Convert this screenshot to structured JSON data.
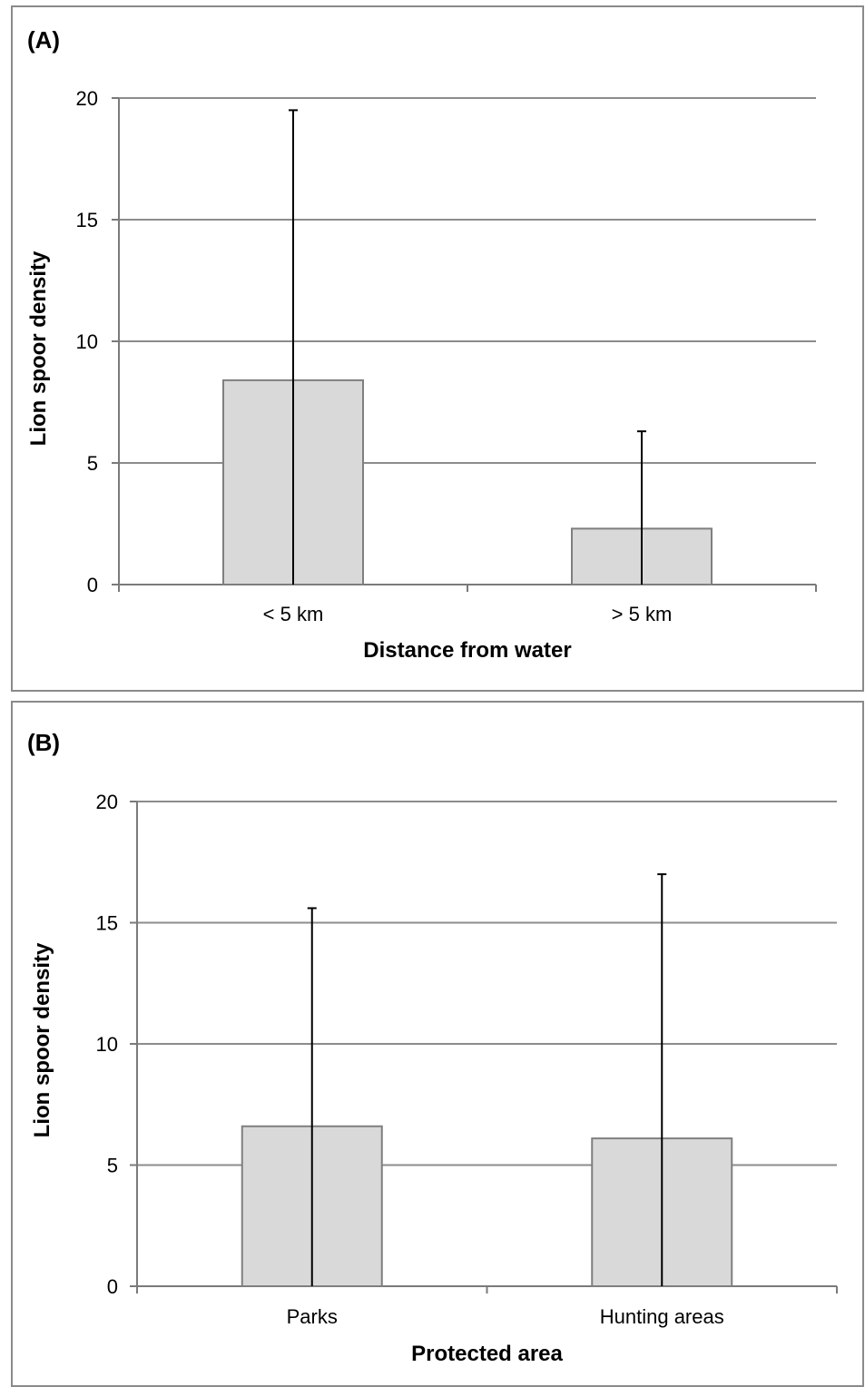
{
  "chart_data": [
    {
      "type": "bar",
      "panel_label": "(A)",
      "categories": [
        "< 5 km",
        "> 5 km"
      ],
      "values": [
        8.4,
        2.3
      ],
      "error_upper": [
        19.5,
        6.3
      ],
      "xlabel": "Distance from water",
      "ylabel": "Lion spoor density",
      "ylim": [
        0,
        20
      ],
      "yticks": [
        "0",
        "5",
        "10",
        "15",
        "20"
      ],
      "grid": true,
      "colors": {
        "bar_fill": "#d9d9d9",
        "bar_stroke": "#7f7f7f",
        "error": "#000000"
      }
    },
    {
      "type": "bar",
      "panel_label": "(B)",
      "categories": [
        "Parks",
        "Hunting areas"
      ],
      "values": [
        6.6,
        6.1
      ],
      "error_upper": [
        15.6,
        17.0
      ],
      "xlabel": "Protected area",
      "ylabel": "Lion spoor density",
      "ylim": [
        0,
        20
      ],
      "yticks": [
        "0",
        "5",
        "10",
        "15",
        "20"
      ],
      "grid": true,
      "colors": {
        "bar_fill": "#d9d9d9",
        "bar_stroke": "#7f7f7f",
        "error": "#000000"
      }
    }
  ]
}
